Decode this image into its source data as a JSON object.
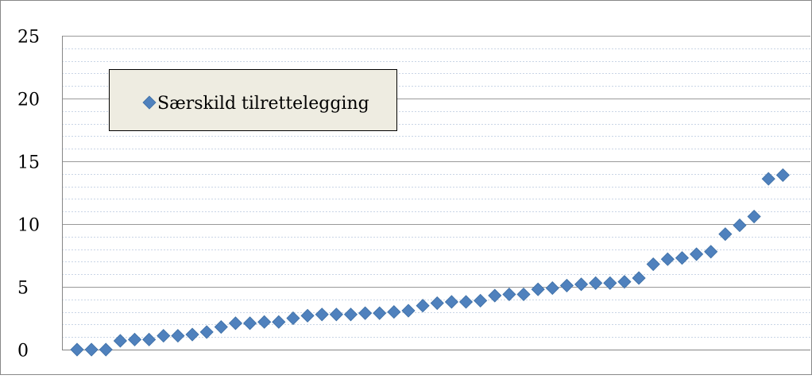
{
  "chart_data": {
    "type": "scatter",
    "title": "",
    "xlabel": "",
    "ylabel": "",
    "ylim": [
      0,
      25
    ],
    "yticks": [
      0,
      5,
      10,
      15,
      20,
      25
    ],
    "grid": {
      "major": true,
      "minor": true,
      "major_color": "#9a9a9a",
      "minor_color": "#c9d5e6"
    },
    "legend": {
      "position": "top-left"
    },
    "series": [
      {
        "name": "Særskild tilrettelegging",
        "color": "#4f81bd",
        "values": [
          0.0,
          0.0,
          0.0,
          0.7,
          0.8,
          0.8,
          1.1,
          1.1,
          1.2,
          1.4,
          1.8,
          2.1,
          2.1,
          2.2,
          2.2,
          2.5,
          2.7,
          2.8,
          2.8,
          2.8,
          2.9,
          2.9,
          3.0,
          3.1,
          3.5,
          3.7,
          3.8,
          3.8,
          3.9,
          4.3,
          4.4,
          4.4,
          4.8,
          4.9,
          5.1,
          5.2,
          5.3,
          5.3,
          5.4,
          5.7,
          6.8,
          7.2,
          7.3,
          7.6,
          7.8,
          9.2,
          9.9,
          10.6,
          13.6,
          13.9
        ]
      }
    ]
  }
}
